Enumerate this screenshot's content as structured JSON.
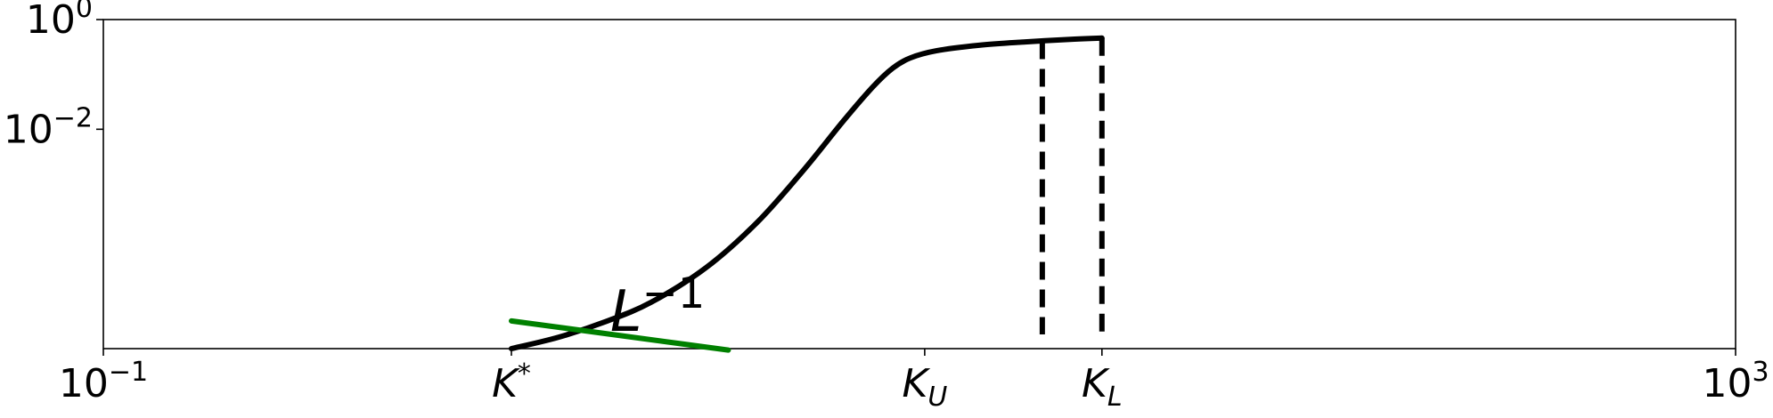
{
  "chart_data": {
    "type": "line",
    "title": "",
    "xlabel": "",
    "ylabel": "",
    "x_scale": "log",
    "y_scale": "log",
    "xlim": [
      0.1,
      1000
    ],
    "ylim": [
      1e-06,
      1
    ],
    "grid": false,
    "colors": {
      "curve": "#000000",
      "slope": "#008000",
      "markers": "#000000"
    },
    "x_ticks": [
      {
        "value": 0.1,
        "base": "10",
        "exp": "−1"
      },
      {
        "value": 1000,
        "base": "10",
        "exp": "3"
      }
    ],
    "x_named_ticks": [
      {
        "value": 1.0,
        "label": "K",
        "sub": "",
        "sup": "*"
      },
      {
        "value": 10.3,
        "label": "K",
        "sub": "U",
        "sup": ""
      },
      {
        "value": 28.0,
        "label": "K",
        "sub": "L",
        "sup": ""
      }
    ],
    "y_ticks": [
      {
        "value": 1,
        "base": "10",
        "exp": "0"
      },
      {
        "value": 0.01,
        "base": "10",
        "exp": "−2"
      }
    ],
    "series": [
      {
        "style": "solid",
        "color": "#000000",
        "x": [
          1.0,
          1.3,
          1.7,
          2.2,
          3.0,
          4.0,
          5.2,
          6.5,
          7.7,
          8.6,
          9.5,
          11.0,
          14.0,
          18.0,
          24.0,
          28.0
        ],
        "y": [
          1e-06,
          1.6e-06,
          3.1e-06,
          7e-06,
          3e-05,
          0.0002,
          0.0018,
          0.014,
          0.06,
          0.13,
          0.2,
          0.27,
          0.34,
          0.39,
          0.44,
          0.46
        ]
      },
      {
        "style": "solid",
        "color": "#008000",
        "x": [
          1.0,
          3.4
        ],
        "y": [
          3.2e-06,
          9.4e-07
        ]
      }
    ],
    "vlines": [
      {
        "x": 20.0,
        "y_top": 0.4,
        "style": "dashed"
      },
      {
        "x": 28.0,
        "y_top": 0.46,
        "style": "dashed"
      }
    ],
    "annotations": [
      {
        "text_base": "L",
        "text_exp": "−1",
        "x": 1.8,
        "y": 4.8e-06
      }
    ]
  }
}
